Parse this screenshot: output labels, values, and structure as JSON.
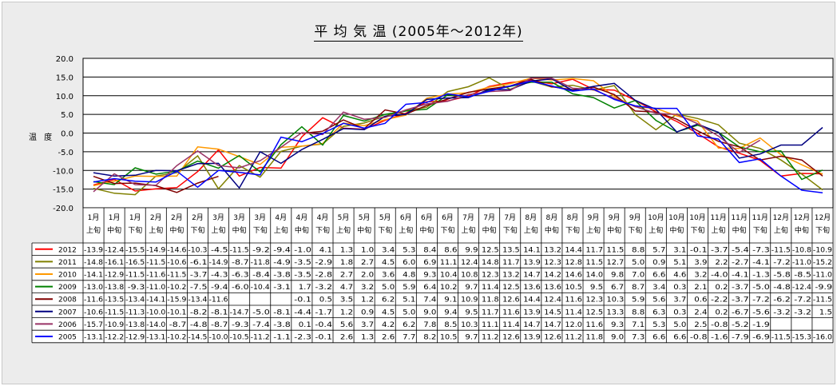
{
  "title": "平 均 気 温 (2005年～2012年)",
  "y_axis_label": "温 度",
  "chart_data": {
    "type": "line",
    "title": "平 均 気 温 (2005年～2012年)",
    "ylabel": "温 度",
    "ylim": [
      -20,
      20
    ],
    "yticks": [
      "20.0",
      "15.0",
      "10.0",
      "5.0",
      "0.0",
      "-5.0",
      "-10.0",
      "-15.0",
      "-20.0"
    ],
    "categories": [
      [
        "1月",
        "上旬"
      ],
      [
        "1月",
        "中旬"
      ],
      [
        "1月",
        "下旬"
      ],
      [
        "2月",
        "上旬"
      ],
      [
        "2月",
        "中旬"
      ],
      [
        "2月",
        "下旬"
      ],
      [
        "3月",
        "上旬"
      ],
      [
        "3月",
        "中旬"
      ],
      [
        "3月",
        "下旬"
      ],
      [
        "4月",
        "上旬"
      ],
      [
        "4月",
        "中旬"
      ],
      [
        "4月",
        "下旬"
      ],
      [
        "5月",
        "上旬"
      ],
      [
        "5月",
        "中旬"
      ],
      [
        "5月",
        "下旬"
      ],
      [
        "6月",
        "上旬"
      ],
      [
        "6月",
        "中旬"
      ],
      [
        "6月",
        "下旬"
      ],
      [
        "7月",
        "上旬"
      ],
      [
        "7月",
        "中旬"
      ],
      [
        "7月",
        "下旬"
      ],
      [
        "8月",
        "上旬"
      ],
      [
        "8月",
        "中旬"
      ],
      [
        "8月",
        "下旬"
      ],
      [
        "9月",
        "上旬"
      ],
      [
        "9月",
        "中旬"
      ],
      [
        "9月",
        "下旬"
      ],
      [
        "10月",
        "上旬"
      ],
      [
        "10月",
        "中旬"
      ],
      [
        "10月",
        "下旬"
      ],
      [
        "11月",
        "上旬"
      ],
      [
        "11月",
        "中旬"
      ],
      [
        "11月",
        "下旬"
      ],
      [
        "12月",
        "上旬"
      ],
      [
        "12月",
        "中旬"
      ],
      [
        "12月",
        "下旬"
      ]
    ],
    "series": [
      {
        "name": "2012",
        "color": "#ff0000",
        "values": [
          -13.9,
          -12.4,
          -15.5,
          -14.9,
          -14.6,
          -10.3,
          -4.5,
          -11.5,
          -9.2,
          -9.4,
          -1.0,
          4.1,
          1.3,
          1.0,
          3.4,
          5.3,
          8.4,
          8.6,
          9.9,
          12.5,
          13.5,
          14.1,
          13.2,
          14.4,
          11.7,
          11.5,
          8.8,
          5.7,
          3.1,
          -0.1,
          -3.7,
          -5.4,
          -7.3,
          -11.5,
          -10.8,
          -10.9
        ],
        "labels": [
          "-13.9",
          "-12.4",
          "-15.5",
          "-14.9",
          "-14.6",
          "-10.3",
          "-4.5",
          "-11.5",
          "-9.2",
          "-9.4",
          "-1.0",
          "4.1",
          "1.3",
          "1.0",
          "3.4",
          "5.3",
          "8.4",
          "8.6",
          "9.9",
          "12.5",
          "13.5",
          "14.1",
          "13.2",
          "14.4",
          "11.7",
          "11.5",
          "8.8",
          "5.7",
          "3.1",
          "-0.1",
          "-3.7",
          "-5.4",
          "-7.3",
          "-11.5",
          "-10.8",
          "-10.9"
        ]
      },
      {
        "name": "2011",
        "color": "#808000",
        "values": [
          -14.8,
          -16.1,
          -16.5,
          -11.5,
          -10.6,
          -6.1,
          -14.9,
          -8.7,
          -11.8,
          -4.9,
          -3.5,
          -2.9,
          1.8,
          2.7,
          4.5,
          6.0,
          6.9,
          11.1,
          12.4,
          14.8,
          11.7,
          13.9,
          12.3,
          12.8,
          11.5,
          12.7,
          5.0,
          0.9,
          5.1,
          3.9,
          2.2,
          -2.7,
          -4.1,
          -7.2,
          -11.0,
          -15.2
        ],
        "labels": [
          "-14.8",
          "-16.1",
          "-16.5",
          "-11.5",
          "-10.6",
          "-6.1",
          "-14.9",
          "-8.7",
          "-11.8",
          "-4.9",
          "-3.5",
          "-2.9",
          "1.8",
          "2.7",
          "4.5",
          "6.0",
          "6.9",
          "11.1",
          "12.4",
          "14.8",
          "11.7",
          "13.9",
          "12.3",
          "12.8",
          "11.5",
          "12.7",
          "5.0",
          "0.9",
          "5.1",
          "3.9",
          "2.2",
          "-2.7",
          "-4.1",
          "-7.2",
          "-11.0",
          "-15.2"
        ]
      },
      {
        "name": "2010",
        "color": "#ff9900",
        "values": [
          -14.1,
          -12.9,
          -11.5,
          -11.6,
          -11.5,
          -3.7,
          -4.3,
          -6.3,
          -8.4,
          -3.8,
          -3.5,
          -2.8,
          2.7,
          2.0,
          3.6,
          4.8,
          9.3,
          10.4,
          10.8,
          12.3,
          13.2,
          14.7,
          14.2,
          14.6,
          14.0,
          9.8,
          7.0,
          6.6,
          4.6,
          3.2,
          -4.0,
          -4.1,
          -1.3,
          -5.8,
          -8.5,
          -11.0
        ],
        "labels": [
          "-14.1",
          "-12.9",
          "-11.5",
          "-11.6",
          "-11.5",
          "-3.7",
          "-4.3",
          "-6.3",
          "-8.4",
          "-3.8",
          "-3.5",
          "-2.8",
          "2.7",
          "2.0",
          "3.6",
          "4.8",
          "9.3",
          "10.4",
          "10.8",
          "12.3",
          "13.2",
          "14.7",
          "14.2",
          "14.6",
          "14.0",
          "9.8",
          "7.0",
          "6.6",
          "4.6",
          "3.2",
          "-4.0",
          "-4.1",
          "-1.3",
          "-5.8",
          "-8.5",
          "-11.0"
        ]
      },
      {
        "name": "2009",
        "color": "#008000",
        "values": [
          -13.0,
          -13.8,
          -9.3,
          -11.0,
          -10.2,
          -7.5,
          -9.4,
          -6.0,
          -10.4,
          -3.1,
          1.7,
          -3.2,
          4.7,
          3.2,
          5.0,
          5.9,
          6.4,
          10.2,
          9.7,
          11.4,
          12.5,
          13.6,
          13.6,
          10.5,
          9.5,
          6.7,
          8.7,
          3.4,
          0.3,
          2.1,
          0.2,
          -3.7,
          -5.0,
          -4.8,
          -12.4,
          -9.9
        ],
        "labels": [
          "-13.0",
          "-13.8",
          "-9.3",
          "-11.0",
          "-10.2",
          "-7.5",
          "-9.4",
          "-6.0",
          "-10.4",
          "-3.1",
          "1.7",
          "-3.2",
          "4.7",
          "3.2",
          "5.0",
          "5.9",
          "6.4",
          "10.2",
          "9.7",
          "11.4",
          "12.5",
          "13.6",
          "13.6",
          "10.5",
          "9.5",
          "6.7",
          "8.7",
          "3.4",
          "0.3",
          "2.1",
          "0.2",
          "-3.7",
          "-5.0",
          "-4.8",
          "-12.4",
          "-9.9"
        ]
      },
      {
        "name": "2008",
        "color": "#800000",
        "values": [
          -11.6,
          -13.5,
          -13.4,
          -14.1,
          -15.9,
          -13.4,
          -11.6,
          null,
          null,
          null,
          -0.1,
          0.5,
          3.5,
          1.2,
          6.2,
          5.1,
          7.4,
          9.1,
          10.9,
          11.8,
          12.6,
          14.4,
          12.4,
          11.6,
          12.3,
          10.3,
          5.9,
          5.6,
          3.7,
          0.6,
          -2.2,
          -3.7,
          -7.2,
          -6.2,
          -7.2,
          -11.5
        ],
        "labels": [
          "-11.6",
          "-13.5",
          "-13.4",
          "-14.1",
          "-15.9",
          "-13.4",
          "-11.6",
          "",
          "",
          "",
          "-0.1",
          "0.5",
          "3.5",
          "1.2",
          "6.2",
          "5.1",
          "7.4",
          "9.1",
          "10.9",
          "11.8",
          "12.6",
          "14.4",
          "12.4",
          "11.6",
          "12.3",
          "10.3",
          "5.9",
          "5.6",
          "3.7",
          "0.6",
          "-2.2",
          "-3.7",
          "-7.2",
          "-6.2",
          "-7.2",
          "-11.5"
        ]
      },
      {
        "name": "2007",
        "color": "#000080",
        "values": [
          -10.6,
          -11.5,
          -11.3,
          -10.0,
          -10.1,
          -8.2,
          -8.1,
          -14.7,
          -5.0,
          -8.1,
          -4.4,
          -1.7,
          1.2,
          0.9,
          4.5,
          5.0,
          9.0,
          9.4,
          9.5,
          11.7,
          11.6,
          13.9,
          14.5,
          11.4,
          12.5,
          13.3,
          8.8,
          6.3,
          0.3,
          2.4,
          0.2,
          -6.7,
          -5.6,
          -3.2,
          -3.2,
          1.5
        ],
        "labels": [
          "-10.6",
          "-11.5",
          "-11.3",
          "-10.0",
          "-10.1",
          "-8.2",
          "-8.1",
          "-14.7",
          "-5.0",
          "-8.1",
          "-4.4",
          "-1.7",
          "1.2",
          "0.9",
          "4.5",
          "5.0",
          "9.0",
          "9.4",
          "9.5",
          "11.7",
          "11.6",
          "13.9",
          "14.5",
          "11.4",
          "12.5",
          "13.3",
          "8.8",
          "6.3",
          "0.3",
          "2.4",
          "0.2",
          "-6.7",
          "-5.6",
          "-3.2",
          "-3.2",
          "1.5"
        ]
      },
      {
        "name": "2006",
        "color": "#993366",
        "values": [
          -15.7,
          -10.9,
          -13.8,
          -14.0,
          -8.7,
          -4.8,
          -8.7,
          -9.3,
          -7.4,
          -3.8,
          0.1,
          -0.4,
          5.6,
          3.7,
          4.2,
          6.2,
          7.8,
          8.5,
          10.3,
          11.1,
          11.4,
          14.7,
          14.7,
          12.0,
          11.6,
          9.3,
          7.1,
          5.3,
          5.0,
          2.5,
          -0.8,
          -5.2,
          -1.9,
          null,
          null,
          null
        ],
        "labels": [
          "-15.7",
          "-10.9",
          "-13.8",
          "-14.0",
          "-8.7",
          "-4.8",
          "-8.7",
          "-9.3",
          "-7.4",
          "-3.8",
          "0.1",
          "-0.4",
          "5.6",
          "3.7",
          "4.2",
          "6.2",
          "7.8",
          "8.5",
          "10.3",
          "11.1",
          "11.4",
          "14.7",
          "14.7",
          "12.0",
          "11.6",
          "9.3",
          "7.1",
          "5.3",
          "5.0",
          "2.5",
          "-0.8",
          "-5.2",
          "-1.9",
          "",
          "",
          ""
        ]
      },
      {
        "name": "2005",
        "color": "#0000ff",
        "values": [
          -13.1,
          -12.2,
          -12.9,
          -13.1,
          -10.2,
          -14.5,
          -10.0,
          -10.5,
          -11.2,
          -1.1,
          -2.3,
          -0.1,
          2.6,
          1.3,
          2.6,
          7.7,
          8.2,
          10.5,
          9.7,
          11.2,
          12.6,
          13.9,
          12.6,
          11.2,
          11.8,
          9.0,
          7.3,
          6.6,
          6.6,
          -0.8,
          -1.6,
          -7.9,
          -6.9,
          -11.5,
          -15.3,
          -16.0
        ],
        "labels": [
          "-13.1",
          "-12.2",
          "-12.9",
          "-13.1",
          "-10.2",
          "-14.5",
          "-10.0",
          "-10.5",
          "-11.2",
          "-1.1",
          "-2.3",
          "-0.1",
          "2.6",
          "1.3",
          "2.6",
          "7.7",
          "8.2",
          "10.5",
          "9.7",
          "11.2",
          "12.6",
          "13.9",
          "12.6",
          "11.2",
          "11.8",
          "9.0",
          "7.3",
          "6.6",
          "6.6",
          "-0.8",
          "-1.6",
          "-7.9",
          "-6.9",
          "-11.5",
          "-15.3",
          "-16.0"
        ]
      }
    ]
  }
}
